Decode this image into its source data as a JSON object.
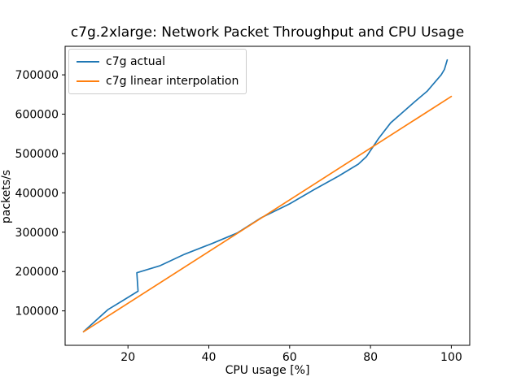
{
  "figure": {
    "background": "#ffffff"
  },
  "chart_data": {
    "type": "line",
    "title": "c7g.2xlarge: Network Packet Throughput and CPU Usage",
    "xlabel": "CPU usage [%]",
    "ylabel": "packets/s",
    "xlim": [
      4.45,
      104.55
    ],
    "ylim": [
      12500,
      772500
    ],
    "xticks": [
      20,
      40,
      60,
      80,
      100
    ],
    "yticks": [
      100000,
      200000,
      300000,
      400000,
      500000,
      600000,
      700000
    ],
    "grid": false,
    "legend_position": "upper-left",
    "frame_color": "#000000",
    "series": [
      {
        "name": "c7g actual",
        "color": "#1f77b4",
        "points": [
          [
            9,
            47000
          ],
          [
            12,
            75000
          ],
          [
            15,
            103000
          ],
          [
            19,
            128000
          ],
          [
            22.5,
            150000
          ],
          [
            22.2,
            197000
          ],
          [
            28,
            215000
          ],
          [
            34,
            244000
          ],
          [
            41,
            272000
          ],
          [
            47,
            298000
          ],
          [
            53,
            337000
          ],
          [
            60,
            372000
          ],
          [
            66,
            408000
          ],
          [
            72,
            442000
          ],
          [
            77,
            473000
          ],
          [
            79,
            492000
          ],
          [
            82,
            538000
          ],
          [
            85,
            578000
          ],
          [
            88,
            605000
          ],
          [
            91,
            632000
          ],
          [
            94,
            658000
          ],
          [
            96,
            682000
          ],
          [
            97.5,
            700000
          ],
          [
            98.3,
            714000
          ],
          [
            99,
            738000
          ]
        ]
      },
      {
        "name": "c7g linear interpolation",
        "color": "#ff7f0e",
        "points": [
          [
            9,
            47000
          ],
          [
            100,
            645000
          ]
        ]
      }
    ]
  }
}
